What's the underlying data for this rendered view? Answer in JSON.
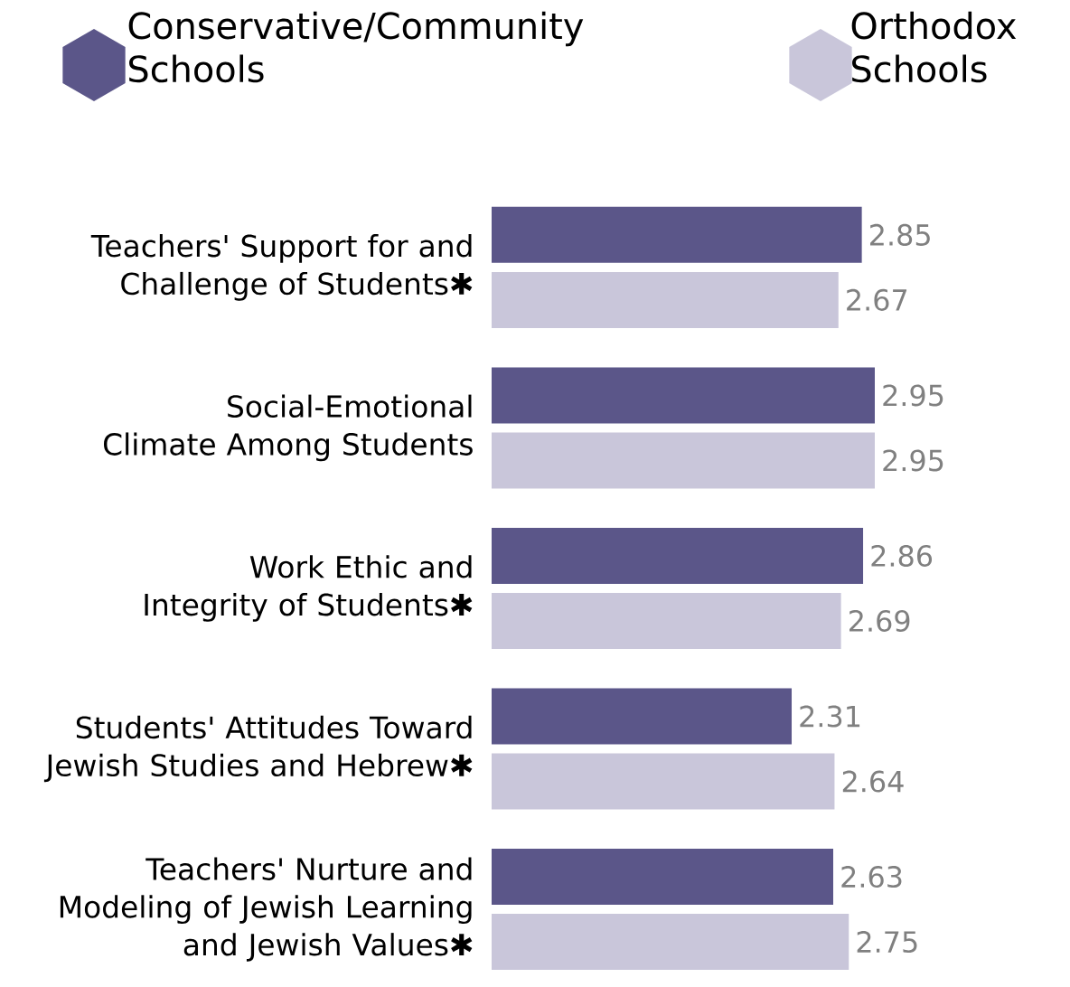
{
  "chart_data": {
    "type": "bar",
    "orientation": "horizontal",
    "categories": [
      "Teachers' Support for and Challenge of Students✱",
      "Social-Emotional Climate Among Students",
      "Work Ethic and Integrity of Students✱",
      "Students' Attitudes Toward Jewish Studies and Hebrew✱",
      "Teachers' Nurture and Modeling of Jewish Learning and Jewish Values✱"
    ],
    "series": [
      {
        "name": "Conservative/Community Schools",
        "color": "#5b5689",
        "values": [
          2.85,
          2.95,
          2.86,
          2.31,
          2.63
        ]
      },
      {
        "name": "Orthodox Schools",
        "color": "#c9c6da",
        "values": [
          2.67,
          2.95,
          2.69,
          2.64,
          2.75
        ]
      }
    ],
    "data_labels": true,
    "legend": "top"
  }
}
